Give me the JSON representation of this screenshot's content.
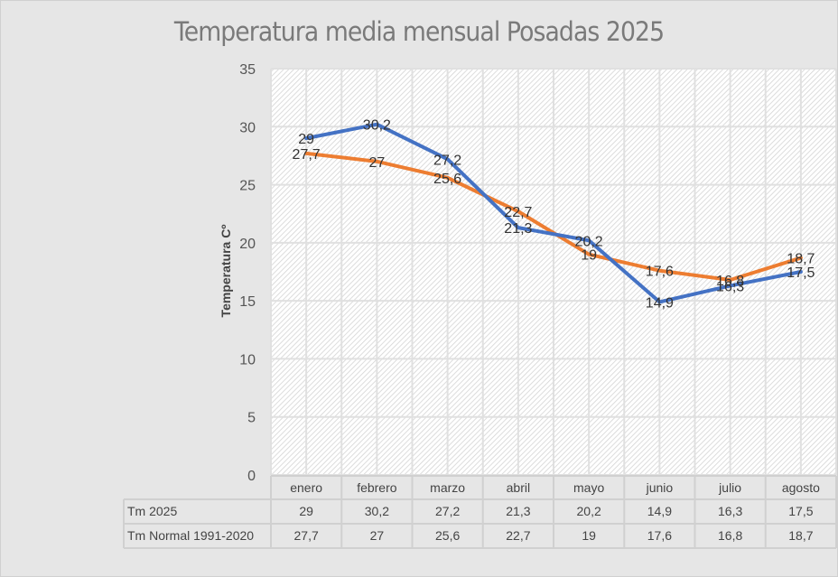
{
  "chart_data": {
    "type": "line",
    "title": "Temperatura media mensual Posadas 2025",
    "xlabel": "",
    "ylabel": "Temperatura Cº",
    "categories": [
      "enero",
      "febrero",
      "marzo",
      "abril",
      "mayo",
      "junio",
      "julio",
      "agosto"
    ],
    "series": [
      {
        "name": "Tm 2025",
        "color": "#4472c4",
        "values": [
          29,
          30.2,
          27.2,
          21.3,
          20.2,
          14.9,
          16.3,
          17.5
        ],
        "labels": [
          "29",
          "30,2",
          "27,2",
          "21,3",
          "20,2",
          "14,9",
          "16,3",
          "17,5"
        ]
      },
      {
        "name": "Tm Normal 1991-2020",
        "color": "#ed7d31",
        "values": [
          27.7,
          27,
          25.6,
          22.7,
          19,
          17.6,
          16.8,
          18.7
        ],
        "labels": [
          "27,7",
          "27",
          "25,6",
          "22,7",
          "19",
          "17,6",
          "16,8",
          "18,7"
        ]
      }
    ],
    "ylim": [
      0,
      35
    ],
    "yticks": [
      0,
      5,
      10,
      15,
      20,
      25,
      30,
      35
    ],
    "grid": true,
    "legend": "data-table-bottom"
  }
}
